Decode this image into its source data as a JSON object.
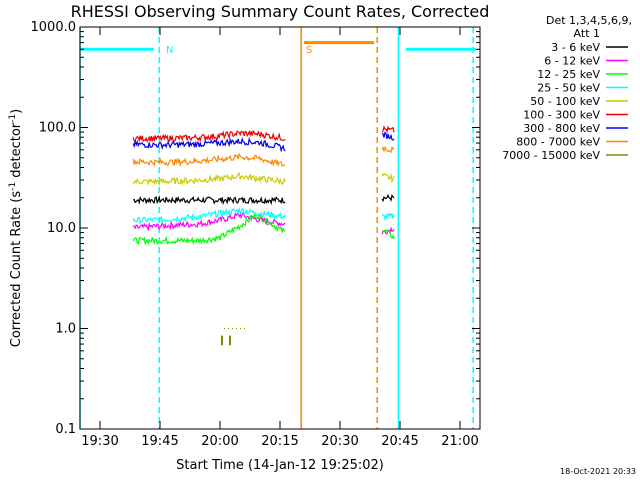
{
  "chart_data": {
    "type": "line",
    "title": "RHESSI Observing Summary Count Rates, Corrected",
    "xlabel": "Start Time (14-Jan-12 19:25:02)",
    "ylabel": "Corrected Count Rate (s",
    "ylabel_sup": "-1",
    "ylabel_mid": " detector",
    "ylabel_sup2": "-1",
    "ylabel_end": ")",
    "xlim_min": [
      0,
      100
    ],
    "ylim": [
      0.1,
      1000
    ],
    "yscale": "log",
    "x_ticks": [
      {
        "min": 5,
        "label": "19:30"
      },
      {
        "min": 20,
        "label": "19:45"
      },
      {
        "min": 35,
        "label": "20:00"
      },
      {
        "min": 50,
        "label": "20:15"
      },
      {
        "min": 65,
        "label": "20:30"
      },
      {
        "min": 80,
        "label": "20:45"
      },
      {
        "min": 95,
        "label": "21:00"
      }
    ],
    "y_ticks": [
      {
        "v": 0.1,
        "label": "0.1"
      },
      {
        "v": 1,
        "label": "1.0"
      },
      {
        "v": 10,
        "label": "10.0"
      },
      {
        "v": 100,
        "label": "100.0"
      },
      {
        "v": 1000,
        "label": "1000.0"
      }
    ],
    "legend": {
      "header": [
        "Det 1,3,4,5,6,9,",
        "Att 1"
      ],
      "placement": "right",
      "entries": [
        {
          "label": "3 - 6 keV",
          "color": "#000000"
        },
        {
          "label": "6 - 12 keV",
          "color": "#ff00ff"
        },
        {
          "label": "12 - 25 keV",
          "color": "#00ff00"
        },
        {
          "label": "25 - 50 keV",
          "color": "#00ffff"
        },
        {
          "label": "50 - 100 keV",
          "color": "#cccc00"
        },
        {
          "label": "100 - 300 keV",
          "color": "#ee0000"
        },
        {
          "label": "300 - 800 keV",
          "color": "#0000ee"
        },
        {
          "label": "800 - 7000 keV",
          "color": "#ff8800"
        },
        {
          "label": "7000 - 15000 keV",
          "color": "#888800"
        }
      ]
    },
    "series": [
      {
        "name": "3 - 6 keV",
        "color": "#000000",
        "seg1": [
          [
            13.3,
            19
          ],
          [
            20,
            19
          ],
          [
            30,
            19
          ],
          [
            40,
            19
          ],
          [
            45,
            19
          ],
          [
            51.3,
            19
          ]
        ],
        "seg2": [
          [
            75.5,
            20
          ],
          [
            78.5,
            20
          ]
        ]
      },
      {
        "name": "6 - 12 keV",
        "color": "#ff00ff",
        "seg1": [
          [
            13.3,
            10
          ],
          [
            20,
            10.5
          ],
          [
            30,
            11
          ],
          [
            35,
            12
          ],
          [
            40,
            13.5
          ],
          [
            45,
            12
          ],
          [
            51.3,
            11
          ]
        ],
        "seg2": [
          [
            75.5,
            9
          ],
          [
            78.5,
            10
          ]
        ]
      },
      {
        "name": "12 - 25 keV",
        "color": "#00ff00",
        "seg1": [
          [
            13.3,
            7.5
          ],
          [
            20,
            7.5
          ],
          [
            30,
            7.5
          ],
          [
            35,
            8
          ],
          [
            40,
            10.5
          ],
          [
            44,
            13.5
          ],
          [
            48,
            11
          ],
          [
            51.3,
            9
          ]
        ],
        "seg2": [
          [
            75.5,
            10
          ],
          [
            78.5,
            8
          ]
        ]
      },
      {
        "name": "25 - 50 keV",
        "color": "#00ffff",
        "seg1": [
          [
            13.3,
            12
          ],
          [
            20,
            12
          ],
          [
            30,
            13
          ],
          [
            35,
            14
          ],
          [
            40,
            15
          ],
          [
            45,
            14
          ],
          [
            51.3,
            13
          ]
        ],
        "seg2": [
          [
            75.5,
            13
          ],
          [
            78.5,
            13
          ]
        ]
      },
      {
        "name": "50 - 100 keV",
        "color": "#cccc00",
        "seg1": [
          [
            13.3,
            29
          ],
          [
            20,
            29
          ],
          [
            30,
            30
          ],
          [
            35,
            31
          ],
          [
            40,
            33
          ],
          [
            45,
            31
          ],
          [
            51.3,
            29
          ]
        ],
        "seg2": [
          [
            75.5,
            33
          ],
          [
            78.5,
            31
          ]
        ]
      },
      {
        "name": "100 - 300 keV",
        "color": "#ee0000",
        "seg1": [
          [
            13.3,
            78
          ],
          [
            20,
            78
          ],
          [
            28,
            79
          ],
          [
            34,
            82
          ],
          [
            40,
            88
          ],
          [
            45,
            86
          ],
          [
            51.3,
            78
          ]
        ],
        "seg2": [
          [
            75.5,
            97
          ],
          [
            78.5,
            93
          ]
        ]
      },
      {
        "name": "300 - 800 keV",
        "color": "#0000ee",
        "seg1": [
          [
            13.3,
            68
          ],
          [
            20,
            67
          ],
          [
            28,
            68
          ],
          [
            34,
            70
          ],
          [
            40,
            73
          ],
          [
            45,
            71
          ],
          [
            51.3,
            62
          ]
        ],
        "seg2": [
          [
            75.5,
            85
          ],
          [
            78.5,
            80
          ]
        ]
      },
      {
        "name": "800 - 7000 keV",
        "color": "#ff8800",
        "seg1": [
          [
            13.3,
            46
          ],
          [
            20,
            45
          ],
          [
            28,
            46
          ],
          [
            34,
            48
          ],
          [
            40,
            51
          ],
          [
            45,
            49
          ],
          [
            51.3,
            42
          ]
        ],
        "seg2": [
          [
            75.5,
            63
          ],
          [
            78.5,
            59
          ]
        ]
      },
      {
        "name": "7000 - 15000 keV",
        "color": "#888800",
        "seg1": [
          [
            36,
            1
          ],
          [
            42,
            1
          ]
        ],
        "seg2": []
      }
    ],
    "annotations": [
      {
        "text": "N",
        "x_min": 21.5,
        "color": "#00ffff"
      },
      {
        "text": "S",
        "x_min": 56.5,
        "color": "#ff8800"
      }
    ],
    "night_bars": [
      [
        0,
        18.5
      ],
      [
        81.5,
        99
      ]
    ],
    "saa_bars": [
      [
        56,
        73.5
      ]
    ],
    "vlines": [
      {
        "x_min": 0,
        "color": "#00ffff",
        "style": "solid"
      },
      {
        "x_min": 19.8,
        "color": "#00ffff",
        "style": "dashed"
      },
      {
        "x_min": 55.3,
        "color": "#ff8800",
        "style": "solid"
      },
      {
        "x_min": 74.3,
        "color": "#ff8800",
        "style": "dashed"
      },
      {
        "x_min": 79.6,
        "color": "#00ffff",
        "style": "solid"
      },
      {
        "x_min": 98.3,
        "color": "#00ffff",
        "style": "dashed"
      }
    ]
  },
  "timestamp": "18-Oct-2021 20:33"
}
